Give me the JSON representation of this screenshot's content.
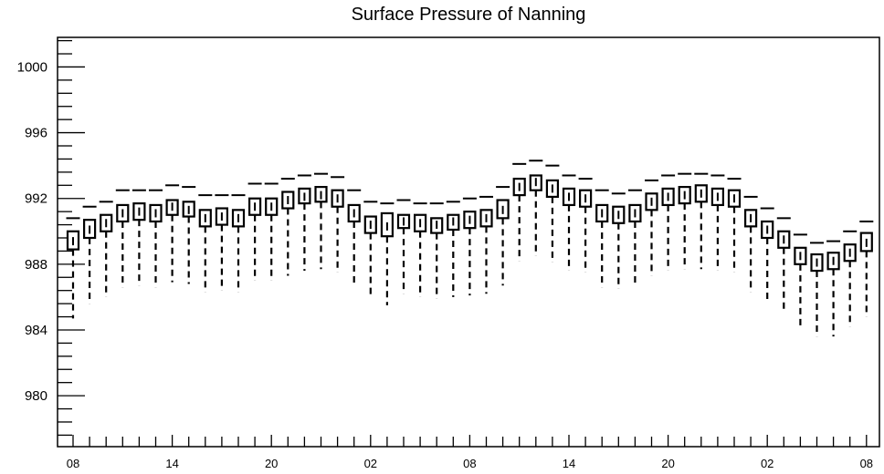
{
  "chart_data": {
    "type": "box",
    "title": "Surface Pressure of Nanning",
    "xlabel": "",
    "ylabel": "",
    "ylim": [
      976.9,
      1001.8
    ],
    "y_major_ticks": [
      980,
      984,
      988,
      992,
      996,
      1000
    ],
    "y_minor_step": 0.8,
    "x_tick_labels": [
      "08",
      "14",
      "20",
      "02",
      "08",
      "14",
      "20",
      "02",
      "08"
    ],
    "x_tick_label_step": 6,
    "grid": false,
    "series": [
      {
        "boxes": [
          {
            "x": 0,
            "q1": 988.9,
            "median": 989.4,
            "q3": 990.0,
            "whisker_low": 984.7,
            "whisker_high": 990.8
          },
          {
            "x": 1,
            "q1": 989.6,
            "median": 990.1,
            "q3": 990.7,
            "whisker_low": 985.6,
            "whisker_high": 991.5
          },
          {
            "x": 2,
            "q1": 990.0,
            "median": 990.5,
            "q3": 991.0,
            "whisker_low": 986.0,
            "whisker_high": 991.8
          },
          {
            "x": 3,
            "q1": 990.6,
            "median": 991.1,
            "q3": 991.6,
            "whisker_low": 986.6,
            "whisker_high": 992.5
          },
          {
            "x": 4,
            "q1": 990.7,
            "median": 991.2,
            "q3": 991.7,
            "whisker_low": 986.7,
            "whisker_high": 992.5
          },
          {
            "x": 5,
            "q1": 990.6,
            "median": 991.1,
            "q3": 991.6,
            "whisker_low": 986.6,
            "whisker_high": 992.5
          },
          {
            "x": 6,
            "q1": 991.0,
            "median": 991.5,
            "q3": 991.9,
            "whisker_low": 986.9,
            "whisker_high": 992.8
          },
          {
            "x": 7,
            "q1": 990.9,
            "median": 991.3,
            "q3": 991.8,
            "whisker_low": 986.8,
            "whisker_high": 992.7
          },
          {
            "x": 8,
            "q1": 990.3,
            "median": 990.8,
            "q3": 991.3,
            "whisker_low": 986.3,
            "whisker_high": 992.2
          },
          {
            "x": 9,
            "q1": 990.4,
            "median": 990.9,
            "q3": 991.4,
            "whisker_low": 986.4,
            "whisker_high": 992.2
          },
          {
            "x": 10,
            "q1": 990.3,
            "median": 990.8,
            "q3": 991.3,
            "whisker_low": 986.3,
            "whisker_high": 992.2
          },
          {
            "x": 11,
            "q1": 991.0,
            "median": 991.5,
            "q3": 992.0,
            "whisker_low": 987.0,
            "whisker_high": 992.9
          },
          {
            "x": 12,
            "q1": 991.0,
            "median": 991.5,
            "q3": 992.0,
            "whisker_low": 987.0,
            "whisker_high": 992.9
          },
          {
            "x": 13,
            "q1": 991.4,
            "median": 991.9,
            "q3": 992.4,
            "whisker_low": 987.3,
            "whisker_high": 993.2
          },
          {
            "x": 14,
            "q1": 991.7,
            "median": 992.1,
            "q3": 992.6,
            "whisker_low": 987.6,
            "whisker_high": 993.4
          },
          {
            "x": 15,
            "q1": 991.8,
            "median": 992.2,
            "q3": 992.7,
            "whisker_low": 987.7,
            "whisker_high": 993.5
          },
          {
            "x": 16,
            "q1": 991.5,
            "median": 992.0,
            "q3": 992.5,
            "whisker_low": 987.5,
            "whisker_high": 993.3
          },
          {
            "x": 17,
            "q1": 990.6,
            "median": 991.1,
            "q3": 991.6,
            "whisker_low": 986.8,
            "whisker_high": 992.5
          },
          {
            "x": 18,
            "q1": 989.9,
            "median": 990.4,
            "q3": 990.9,
            "whisker_low": 986.0,
            "whisker_high": 991.8
          },
          {
            "x": 19,
            "q1": 989.7,
            "median": 990.3,
            "q3": 991.1,
            "whisker_low": 985.5,
            "whisker_high": 991.7
          },
          {
            "x": 20,
            "q1": 990.2,
            "median": 990.6,
            "q3": 991.0,
            "whisker_low": 986.2,
            "whisker_high": 991.9
          },
          {
            "x": 21,
            "q1": 990.0,
            "median": 990.5,
            "q3": 991.0,
            "whisker_low": 986.0,
            "whisker_high": 991.7
          },
          {
            "x": 22,
            "q1": 989.9,
            "median": 990.4,
            "q3": 990.8,
            "whisker_low": 985.9,
            "whisker_high": 991.7
          },
          {
            "x": 23,
            "q1": 990.1,
            "median": 990.6,
            "q3": 991.0,
            "whisker_low": 986.0,
            "whisker_high": 991.8
          },
          {
            "x": 24,
            "q1": 990.2,
            "median": 990.7,
            "q3": 991.2,
            "whisker_low": 986.1,
            "whisker_high": 992.0
          },
          {
            "x": 25,
            "q1": 990.3,
            "median": 990.8,
            "q3": 991.3,
            "whisker_low": 986.2,
            "whisker_high": 992.1
          },
          {
            "x": 26,
            "q1": 990.8,
            "median": 991.3,
            "q3": 991.9,
            "whisker_low": 986.7,
            "whisker_high": 992.7
          },
          {
            "x": 27,
            "q1": 992.2,
            "median": 992.7,
            "q3": 993.2,
            "whisker_low": 988.2,
            "whisker_high": 994.1
          },
          {
            "x": 28,
            "q1": 992.5,
            "median": 993.0,
            "q3": 993.4,
            "whisker_low": 988.5,
            "whisker_high": 994.3
          },
          {
            "x": 29,
            "q1": 992.1,
            "median": 992.6,
            "q3": 993.1,
            "whisker_low": 988.1,
            "whisker_high": 994.0
          },
          {
            "x": 30,
            "q1": 991.6,
            "median": 992.1,
            "q3": 992.6,
            "whisker_low": 987.6,
            "whisker_high": 993.4
          },
          {
            "x": 31,
            "q1": 991.5,
            "median": 992.0,
            "q3": 992.5,
            "whisker_low": 987.5,
            "whisker_high": 993.2
          },
          {
            "x": 32,
            "q1": 990.6,
            "median": 991.1,
            "q3": 991.6,
            "whisker_low": 986.6,
            "whisker_high": 992.5
          },
          {
            "x": 33,
            "q1": 990.5,
            "median": 991.0,
            "q3": 991.5,
            "whisker_low": 986.5,
            "whisker_high": 992.3
          },
          {
            "x": 34,
            "q1": 990.6,
            "median": 991.1,
            "q3": 991.6,
            "whisker_low": 986.7,
            "whisker_high": 992.5
          },
          {
            "x": 35,
            "q1": 991.3,
            "median": 991.8,
            "q3": 992.3,
            "whisker_low": 987.3,
            "whisker_high": 993.1
          },
          {
            "x": 36,
            "q1": 991.6,
            "median": 992.1,
            "q3": 992.6,
            "whisker_low": 987.6,
            "whisker_high": 993.4
          },
          {
            "x": 37,
            "q1": 991.7,
            "median": 992.2,
            "q3": 992.7,
            "whisker_low": 987.7,
            "whisker_high": 993.5
          },
          {
            "x": 38,
            "q1": 991.8,
            "median": 992.3,
            "q3": 992.8,
            "whisker_low": 987.7,
            "whisker_high": 993.5
          },
          {
            "x": 39,
            "q1": 991.6,
            "median": 992.1,
            "q3": 992.6,
            "whisker_low": 987.6,
            "whisker_high": 993.4
          },
          {
            "x": 40,
            "q1": 991.5,
            "median": 992.0,
            "q3": 992.5,
            "whisker_low": 987.5,
            "whisker_high": 993.2
          },
          {
            "x": 41,
            "q1": 990.3,
            "median": 990.8,
            "q3": 991.3,
            "whisker_low": 986.3,
            "whisker_high": 992.1
          },
          {
            "x": 42,
            "q1": 989.6,
            "median": 990.1,
            "q3": 990.6,
            "whisker_low": 985.8,
            "whisker_high": 991.4
          },
          {
            "x": 43,
            "q1": 989.0,
            "median": 989.5,
            "q3": 990.0,
            "whisker_low": 985.1,
            "whisker_high": 990.8
          },
          {
            "x": 44,
            "q1": 988.0,
            "median": 988.5,
            "q3": 989.0,
            "whisker_low": 984.1,
            "whisker_high": 989.8
          },
          {
            "x": 45,
            "q1": 987.6,
            "median": 988.1,
            "q3": 988.6,
            "whisker_low": 983.6,
            "whisker_high": 989.3
          },
          {
            "x": 46,
            "q1": 987.7,
            "median": 988.2,
            "q3": 988.7,
            "whisker_low": 983.6,
            "whisker_high": 989.4
          },
          {
            "x": 47,
            "q1": 988.2,
            "median": 988.7,
            "q3": 989.2,
            "whisker_low": 984.2,
            "whisker_high": 990.0
          },
          {
            "x": 48,
            "q1": 988.8,
            "median": 989.3,
            "q3": 989.9,
            "whisker_low": 984.8,
            "whisker_high": 990.6
          }
        ]
      }
    ]
  }
}
